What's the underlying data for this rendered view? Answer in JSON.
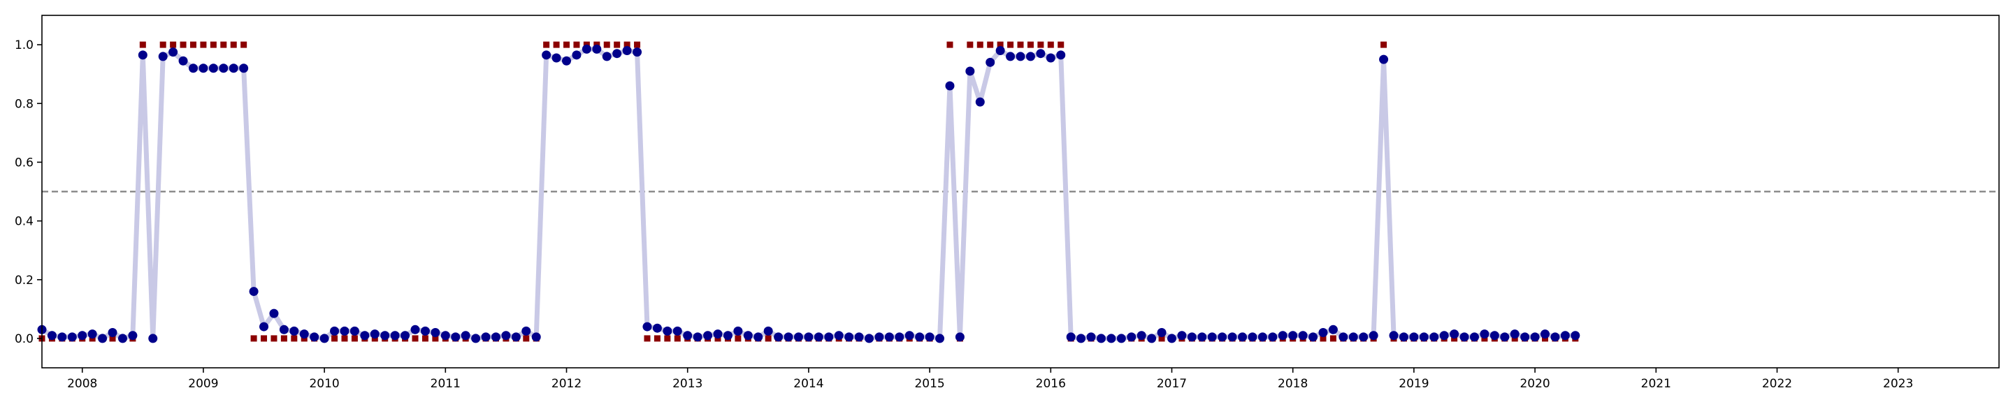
{
  "chart_data": {
    "type": "scatter",
    "title": "",
    "xlabel": "",
    "ylabel": "",
    "x_axis": {
      "type": "date",
      "xlim": [
        "2007-09-01",
        "2023-11-01"
      ],
      "tick_labels": [
        "2008",
        "2009",
        "2010",
        "2011",
        "2012",
        "2013",
        "2014",
        "2015",
        "2016",
        "2017",
        "2018",
        "2019",
        "2020",
        "2021",
        "2022",
        "2023"
      ]
    },
    "y_axis": {
      "ylim": [
        -0.1,
        1.1
      ],
      "tick_labels": [
        "0.0",
        "0.2",
        "0.4",
        "0.6",
        "0.8",
        "1.0"
      ]
    },
    "grid": false,
    "legend": "none",
    "threshold": 0.5,
    "colors": {
      "line": "#c9c9e6",
      "points": "#00008b",
      "labels": "#8b0000",
      "threshold": "#808080"
    },
    "start_month": "2007-09",
    "series": [
      {
        "style": "line+circle",
        "values": [
          0.03,
          0.01,
          0.005,
          0.005,
          0.01,
          0.015,
          0.0,
          0.02,
          0.0,
          0.01,
          0.965,
          0.0,
          0.96,
          0.975,
          0.945,
          0.92,
          0.92,
          0.92,
          0.92,
          0.92,
          0.92,
          0.16,
          0.04,
          0.085,
          0.03,
          0.025,
          0.015,
          0.005,
          0.0,
          0.025,
          0.025,
          0.025,
          0.01,
          0.015,
          0.01,
          0.01,
          0.01,
          0.03,
          0.025,
          0.02,
          0.01,
          0.005,
          0.01,
          0.0,
          0.005,
          0.005,
          0.01,
          0.005,
          0.025,
          0.005,
          0.965,
          0.955,
          0.945,
          0.965,
          0.985,
          0.985,
          0.96,
          0.97,
          0.98,
          0.975,
          0.04,
          0.035,
          0.025,
          0.025,
          0.01,
          0.005,
          0.01,
          0.015,
          0.01,
          0.025,
          0.01,
          0.005,
          0.025,
          0.005,
          0.005,
          0.005,
          0.005,
          0.005,
          0.005,
          0.01,
          0.005,
          0.005,
          0.0,
          0.005,
          0.005,
          0.005,
          0.01,
          0.005,
          0.005,
          0.0,
          0.86,
          0.005,
          0.91,
          0.805,
          0.94,
          0.98,
          0.96,
          0.96,
          0.96,
          0.97,
          0.955,
          0.965,
          0.005,
          0.0,
          0.005,
          0.0,
          0.0,
          0.0,
          0.005,
          0.01,
          0.0,
          0.02,
          0.0,
          0.01,
          0.005,
          0.005,
          0.005,
          0.005,
          0.005,
          0.005,
          0.005,
          0.005,
          0.005,
          0.01,
          0.01,
          0.01,
          0.005,
          0.02,
          0.03,
          0.005,
          0.005,
          0.005,
          0.01,
          0.95,
          0.01,
          0.005,
          0.005,
          0.005,
          0.005,
          0.01,
          0.015,
          0.005,
          0.005,
          0.015,
          0.01,
          0.005,
          0.015,
          0.005,
          0.005,
          0.015,
          0.005,
          0.01,
          0.01
        ]
      },
      {
        "style": "square",
        "values": [
          0,
          0,
          0,
          0,
          0,
          0,
          0,
          0,
          0,
          0,
          1,
          0,
          1,
          1,
          1,
          1,
          1,
          1,
          1,
          1,
          1,
          0,
          0,
          0,
          0,
          0,
          0,
          0,
          0,
          0,
          0,
          0,
          0,
          0,
          0,
          0,
          0,
          0,
          0,
          0,
          0,
          0,
          0,
          0,
          0,
          0,
          0,
          0,
          0,
          0,
          1,
          1,
          1,
          1,
          1,
          1,
          1,
          1,
          1,
          1,
          0,
          0,
          0,
          0,
          0,
          0,
          0,
          0,
          0,
          0,
          0,
          0,
          0,
          0,
          0,
          0,
          0,
          0,
          0,
          0,
          0,
          0,
          0,
          0,
          0,
          0,
          0,
          0,
          0,
          0,
          1,
          0,
          1,
          1,
          1,
          1,
          1,
          1,
          1,
          1,
          1,
          1,
          0,
          0,
          0,
          0,
          0,
          0,
          0,
          0,
          0,
          0,
          0,
          0,
          0,
          0,
          0,
          0,
          0,
          0,
          0,
          0,
          0,
          0,
          0,
          0,
          0,
          0,
          0,
          0,
          0,
          0,
          0,
          1,
          0,
          0,
          0,
          0,
          0,
          0,
          0,
          0,
          0,
          0,
          0,
          0,
          0,
          0,
          0,
          0,
          0,
          0,
          0
        ]
      }
    ]
  }
}
